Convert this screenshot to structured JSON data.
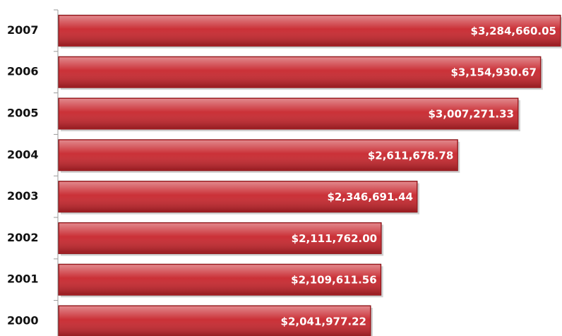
{
  "chart_data": {
    "type": "bar",
    "orientation": "horizontal",
    "categories": [
      "2007",
      "2006",
      "2005",
      "2004",
      "2003",
      "2002",
      "2001",
      "2000"
    ],
    "values": [
      3284660.05,
      3154930.67,
      3007271.33,
      2611678.78,
      2346691.44,
      2111762.0,
      2109611.56,
      2041977.22
    ],
    "value_labels": [
      "$3,284,660.05",
      "$3,154,930.67",
      "$3,007,271.33",
      "$2,611,678.78",
      "$2,346,691.44",
      "$2,111,762.00",
      "$2,109,611.56",
      "$2,041,977.22"
    ],
    "color": "#c8262d"
  }
}
